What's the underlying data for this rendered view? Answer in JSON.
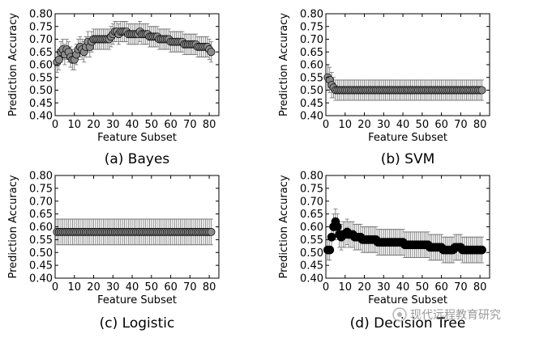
{
  "chart_data": [
    {
      "type": "scatter",
      "caption": "(a) Bayes",
      "xlabel": "Feature Subset",
      "ylabel": "Prediction Accuracy",
      "xlim": [
        0,
        85
      ],
      "ylim": [
        0.4,
        0.8
      ],
      "xticks": [
        "0",
        "10",
        "20",
        "30",
        "40",
        "50",
        "60",
        "70",
        "80"
      ],
      "yticks": [
        "0.40",
        "0.45",
        "0.50",
        "0.55",
        "0.60",
        "0.65",
        "0.70",
        "0.75",
        "0.80"
      ],
      "marker": "open",
      "x": [
        1,
        2,
        3,
        4,
        5,
        6,
        7,
        8,
        9,
        10,
        11,
        12,
        13,
        14,
        15,
        16,
        17,
        18,
        19,
        20,
        21,
        22,
        23,
        24,
        25,
        26,
        27,
        28,
        29,
        30,
        31,
        32,
        33,
        34,
        35,
        36,
        37,
        38,
        39,
        40,
        41,
        42,
        43,
        44,
        45,
        46,
        47,
        48,
        49,
        50,
        51,
        52,
        53,
        54,
        55,
        56,
        57,
        58,
        59,
        60,
        61,
        62,
        63,
        64,
        65,
        66,
        67,
        68,
        69,
        70,
        71,
        72,
        73,
        74,
        75,
        76,
        77,
        78,
        79,
        80,
        81
      ],
      "y": [
        0.61,
        0.62,
        0.65,
        0.66,
        0.64,
        0.66,
        0.65,
        0.63,
        0.62,
        0.62,
        0.64,
        0.66,
        0.67,
        0.66,
        0.65,
        0.67,
        0.69,
        0.67,
        0.69,
        0.7,
        0.7,
        0.7,
        0.7,
        0.7,
        0.7,
        0.7,
        0.7,
        0.7,
        0.71,
        0.72,
        0.73,
        0.73,
        0.72,
        0.73,
        0.73,
        0.73,
        0.73,
        0.72,
        0.72,
        0.72,
        0.72,
        0.72,
        0.72,
        0.73,
        0.72,
        0.72,
        0.72,
        0.72,
        0.71,
        0.71,
        0.71,
        0.71,
        0.71,
        0.7,
        0.7,
        0.7,
        0.7,
        0.7,
        0.7,
        0.69,
        0.69,
        0.69,
        0.69,
        0.69,
        0.69,
        0.69,
        0.68,
        0.68,
        0.68,
        0.68,
        0.68,
        0.68,
        0.68,
        0.67,
        0.67,
        0.67,
        0.67,
        0.67,
        0.67,
        0.66,
        0.65
      ],
      "err": [
        0.04,
        0.04,
        0.04,
        0.04,
        0.04,
        0.04,
        0.04,
        0.04,
        0.04,
        0.04,
        0.04,
        0.04,
        0.04,
        0.04,
        0.04,
        0.04,
        0.04,
        0.04,
        0.04,
        0.04,
        0.04,
        0.04,
        0.04,
        0.04,
        0.04,
        0.04,
        0.04,
        0.04,
        0.04,
        0.04,
        0.04,
        0.04,
        0.04,
        0.04,
        0.04,
        0.04,
        0.04,
        0.04,
        0.04,
        0.04,
        0.04,
        0.04,
        0.04,
        0.04,
        0.04,
        0.04,
        0.04,
        0.04,
        0.04,
        0.04,
        0.04,
        0.04,
        0.04,
        0.04,
        0.04,
        0.04,
        0.04,
        0.04,
        0.04,
        0.04,
        0.04,
        0.04,
        0.04,
        0.04,
        0.04,
        0.04,
        0.04,
        0.04,
        0.04,
        0.04,
        0.04,
        0.04,
        0.04,
        0.04,
        0.04,
        0.04,
        0.04,
        0.04,
        0.04,
        0.04,
        0.04
      ]
    },
    {
      "type": "scatter",
      "caption": "(b) SVM",
      "xlabel": "Feature Subset",
      "ylabel": "Prediction Accuracy",
      "xlim": [
        0,
        85
      ],
      "ylim": [
        0.4,
        0.8
      ],
      "xticks": [
        "0",
        "10",
        "20",
        "30",
        "40",
        "50",
        "60",
        "70",
        "80"
      ],
      "yticks": [
        "0.40",
        "0.45",
        "0.50",
        "0.55",
        "0.60",
        "0.65",
        "0.70",
        "0.75",
        "0.80"
      ],
      "marker": "open",
      "x": [
        1,
        2,
        3,
        4,
        5,
        6,
        7,
        8,
        9,
        10,
        11,
        12,
        13,
        14,
        15,
        16,
        17,
        18,
        19,
        20,
        21,
        22,
        23,
        24,
        25,
        26,
        27,
        28,
        29,
        30,
        31,
        32,
        33,
        34,
        35,
        36,
        37,
        38,
        39,
        40,
        41,
        42,
        43,
        44,
        45,
        46,
        47,
        48,
        49,
        50,
        51,
        52,
        53,
        54,
        55,
        56,
        57,
        58,
        59,
        60,
        61,
        62,
        63,
        64,
        65,
        66,
        67,
        68,
        69,
        70,
        71,
        72,
        73,
        74,
        75,
        76,
        77,
        78,
        79,
        80,
        81
      ],
      "y": [
        0.55,
        0.54,
        0.52,
        0.51,
        0.5,
        0.5,
        0.5,
        0.5,
        0.5,
        0.5,
        0.5,
        0.5,
        0.5,
        0.5,
        0.5,
        0.5,
        0.5,
        0.5,
        0.5,
        0.5,
        0.5,
        0.5,
        0.5,
        0.5,
        0.5,
        0.5,
        0.5,
        0.5,
        0.5,
        0.5,
        0.5,
        0.5,
        0.5,
        0.5,
        0.5,
        0.5,
        0.5,
        0.5,
        0.5,
        0.5,
        0.5,
        0.5,
        0.5,
        0.5,
        0.5,
        0.5,
        0.5,
        0.5,
        0.5,
        0.5,
        0.5,
        0.5,
        0.5,
        0.5,
        0.5,
        0.5,
        0.5,
        0.5,
        0.5,
        0.5,
        0.5,
        0.5,
        0.5,
        0.5,
        0.5,
        0.5,
        0.5,
        0.5,
        0.5,
        0.5,
        0.5,
        0.5,
        0.5,
        0.5,
        0.5,
        0.5,
        0.5,
        0.5,
        0.5,
        0.5,
        0.5
      ],
      "err": [
        0.05,
        0.05,
        0.05,
        0.04,
        0.04,
        0.04,
        0.04,
        0.04,
        0.04,
        0.04,
        0.04,
        0.04,
        0.04,
        0.04,
        0.04,
        0.04,
        0.04,
        0.04,
        0.04,
        0.04,
        0.04,
        0.04,
        0.04,
        0.04,
        0.04,
        0.04,
        0.04,
        0.04,
        0.04,
        0.04,
        0.04,
        0.04,
        0.04,
        0.04,
        0.04,
        0.04,
        0.04,
        0.04,
        0.04,
        0.04,
        0.04,
        0.04,
        0.04,
        0.04,
        0.04,
        0.04,
        0.04,
        0.04,
        0.04,
        0.04,
        0.04,
        0.04,
        0.04,
        0.04,
        0.04,
        0.04,
        0.04,
        0.04,
        0.04,
        0.04,
        0.04,
        0.04,
        0.04,
        0.04,
        0.04,
        0.04,
        0.04,
        0.04,
        0.04,
        0.04,
        0.04,
        0.04,
        0.04,
        0.04,
        0.04,
        0.04,
        0.04,
        0.04,
        0.04,
        0.04,
        0.04
      ]
    },
    {
      "type": "scatter",
      "caption": "(c) Logistic",
      "xlabel": "Feature Subset",
      "ylabel": "Prediction Accuracy",
      "xlim": [
        0,
        85
      ],
      "ylim": [
        0.4,
        0.8
      ],
      "xticks": [
        "0",
        "10",
        "20",
        "30",
        "40",
        "50",
        "60",
        "70",
        "80"
      ],
      "yticks": [
        "0.40",
        "0.45",
        "0.50",
        "0.55",
        "0.60",
        "0.65",
        "0.70",
        "0.75",
        "0.80"
      ],
      "marker": "open",
      "x": [
        1,
        2,
        3,
        4,
        5,
        6,
        7,
        8,
        9,
        10,
        11,
        12,
        13,
        14,
        15,
        16,
        17,
        18,
        19,
        20,
        21,
        22,
        23,
        24,
        25,
        26,
        27,
        28,
        29,
        30,
        31,
        32,
        33,
        34,
        35,
        36,
        37,
        38,
        39,
        40,
        41,
        42,
        43,
        44,
        45,
        46,
        47,
        48,
        49,
        50,
        51,
        52,
        53,
        54,
        55,
        56,
        57,
        58,
        59,
        60,
        61,
        62,
        63,
        64,
        65,
        66,
        67,
        68,
        69,
        70,
        71,
        72,
        73,
        74,
        75,
        76,
        77,
        78,
        79,
        80,
        81
      ],
      "y": [
        0.58,
        0.58,
        0.58,
        0.58,
        0.58,
        0.58,
        0.58,
        0.58,
        0.58,
        0.58,
        0.58,
        0.58,
        0.58,
        0.58,
        0.58,
        0.58,
        0.58,
        0.58,
        0.58,
        0.58,
        0.58,
        0.58,
        0.58,
        0.58,
        0.58,
        0.58,
        0.58,
        0.58,
        0.58,
        0.58,
        0.58,
        0.58,
        0.58,
        0.58,
        0.58,
        0.58,
        0.58,
        0.58,
        0.58,
        0.58,
        0.58,
        0.58,
        0.58,
        0.58,
        0.58,
        0.58,
        0.58,
        0.58,
        0.58,
        0.58,
        0.58,
        0.58,
        0.58,
        0.58,
        0.58,
        0.58,
        0.58,
        0.58,
        0.58,
        0.58,
        0.58,
        0.58,
        0.58,
        0.58,
        0.58,
        0.58,
        0.58,
        0.58,
        0.58,
        0.58,
        0.58,
        0.58,
        0.58,
        0.58,
        0.58,
        0.58,
        0.58,
        0.58,
        0.58,
        0.58,
        0.58
      ],
      "err": [
        0.05,
        0.05,
        0.05,
        0.05,
        0.05,
        0.05,
        0.05,
        0.05,
        0.05,
        0.05,
        0.05,
        0.05,
        0.05,
        0.05,
        0.05,
        0.05,
        0.05,
        0.05,
        0.05,
        0.05,
        0.05,
        0.05,
        0.05,
        0.05,
        0.05,
        0.05,
        0.05,
        0.05,
        0.05,
        0.05,
        0.05,
        0.05,
        0.05,
        0.05,
        0.05,
        0.05,
        0.05,
        0.05,
        0.05,
        0.05,
        0.05,
        0.05,
        0.05,
        0.05,
        0.05,
        0.05,
        0.05,
        0.05,
        0.05,
        0.05,
        0.05,
        0.05,
        0.05,
        0.05,
        0.05,
        0.05,
        0.05,
        0.05,
        0.05,
        0.05,
        0.05,
        0.05,
        0.05,
        0.05,
        0.05,
        0.05,
        0.05,
        0.05,
        0.05,
        0.05,
        0.05,
        0.05,
        0.05,
        0.05,
        0.05,
        0.05,
        0.05,
        0.05,
        0.05,
        0.05,
        0.05
      ]
    },
    {
      "type": "scatter",
      "caption": "(d) Decision Tree",
      "xlabel": "Feature Subset",
      "ylabel": "Prediction Accuracy",
      "xlim": [
        0,
        85
      ],
      "ylim": [
        0.4,
        0.8
      ],
      "xticks": [
        "0",
        "10",
        "20",
        "30",
        "40",
        "50",
        "60",
        "70",
        "80"
      ],
      "yticks": [
        "0.40",
        "0.45",
        "0.50",
        "0.55",
        "0.60",
        "0.65",
        "0.70",
        "0.75",
        "0.80"
      ],
      "marker": "filled",
      "x": [
        1,
        2,
        3,
        4,
        5,
        6,
        7,
        8,
        9,
        10,
        11,
        12,
        13,
        14,
        15,
        16,
        17,
        18,
        19,
        20,
        21,
        22,
        23,
        24,
        25,
        26,
        27,
        28,
        29,
        30,
        31,
        32,
        33,
        34,
        35,
        36,
        37,
        38,
        39,
        40,
        41,
        42,
        43,
        44,
        45,
        46,
        47,
        48,
        49,
        50,
        51,
        52,
        53,
        54,
        55,
        56,
        57,
        58,
        59,
        60,
        61,
        62,
        63,
        64,
        65,
        66,
        67,
        68,
        69,
        70,
        71,
        72,
        73,
        74,
        75,
        76,
        77,
        78,
        79,
        80,
        81
      ],
      "y": [
        0.51,
        0.51,
        0.56,
        0.6,
        0.62,
        0.6,
        0.57,
        0.56,
        0.57,
        0.57,
        0.58,
        0.57,
        0.57,
        0.57,
        0.56,
        0.56,
        0.56,
        0.56,
        0.55,
        0.55,
        0.55,
        0.55,
        0.55,
        0.55,
        0.55,
        0.55,
        0.54,
        0.54,
        0.54,
        0.54,
        0.54,
        0.54,
        0.54,
        0.54,
        0.54,
        0.54,
        0.54,
        0.54,
        0.54,
        0.54,
        0.53,
        0.53,
        0.53,
        0.53,
        0.53,
        0.53,
        0.53,
        0.53,
        0.53,
        0.53,
        0.53,
        0.53,
        0.53,
        0.52,
        0.52,
        0.52,
        0.52,
        0.52,
        0.52,
        0.52,
        0.51,
        0.51,
        0.51,
        0.51,
        0.51,
        0.51,
        0.52,
        0.52,
        0.52,
        0.52,
        0.51,
        0.51,
        0.51,
        0.51,
        0.51,
        0.51,
        0.51,
        0.51,
        0.51,
        0.51,
        0.51
      ],
      "err": [
        0.04,
        0.04,
        0.05,
        0.05,
        0.05,
        0.05,
        0.05,
        0.05,
        0.05,
        0.05,
        0.05,
        0.05,
        0.05,
        0.05,
        0.05,
        0.05,
        0.05,
        0.05,
        0.05,
        0.05,
        0.05,
        0.05,
        0.05,
        0.05,
        0.05,
        0.05,
        0.05,
        0.05,
        0.05,
        0.05,
        0.05,
        0.05,
        0.05,
        0.05,
        0.05,
        0.05,
        0.05,
        0.05,
        0.05,
        0.05,
        0.05,
        0.05,
        0.05,
        0.05,
        0.05,
        0.05,
        0.05,
        0.05,
        0.05,
        0.05,
        0.05,
        0.05,
        0.05,
        0.05,
        0.05,
        0.05,
        0.05,
        0.05,
        0.05,
        0.05,
        0.05,
        0.05,
        0.05,
        0.05,
        0.05,
        0.05,
        0.05,
        0.05,
        0.05,
        0.05,
        0.05,
        0.05,
        0.05,
        0.05,
        0.05,
        0.05,
        0.05,
        0.05,
        0.05,
        0.05,
        0.05
      ]
    }
  ],
  "watermark": {
    "text": "现代远程教育研究"
  },
  "colors": {
    "marker_fill_open": "#8a8a8a",
    "marker_fill_filled": "#000000",
    "error_bar": "#707070",
    "axis": "#000000"
  }
}
